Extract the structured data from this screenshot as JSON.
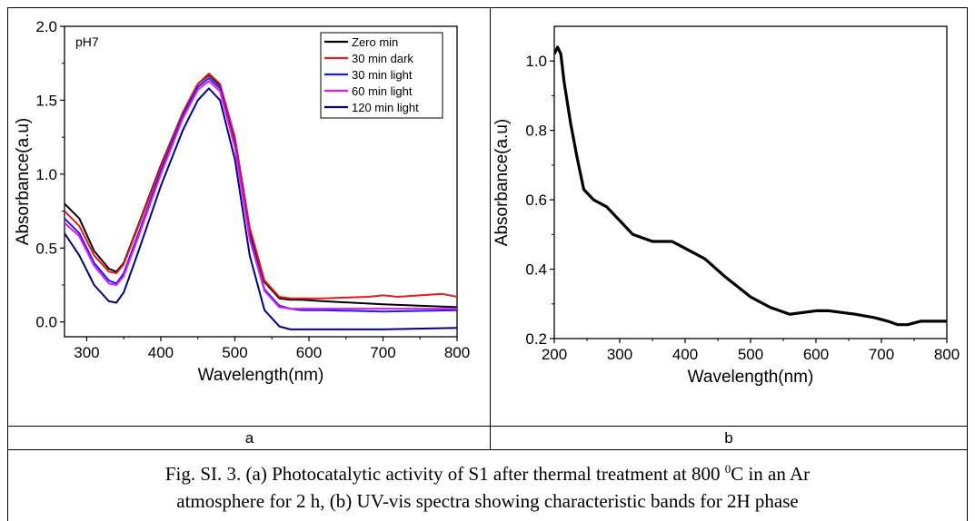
{
  "chart_data": [
    {
      "type": "line",
      "panel": "a",
      "annotation": "pH7",
      "xlabel": "Wavelength(nm)",
      "ylabel": "Absorbance(a.u)",
      "xlim": [
        270,
        800
      ],
      "ylim": [
        -0.1,
        2.0
      ],
      "xticks": [
        300,
        400,
        500,
        600,
        700,
        800
      ],
      "yticks": [
        0.0,
        0.5,
        1.0,
        1.5,
        2.0
      ],
      "ytick_labels": [
        "0.0",
        "0.5",
        "1.0",
        "1.5",
        "2.0"
      ],
      "legend_position": "top-right",
      "series": [
        {
          "name": "Zero min",
          "color": "#000000",
          "x": [
            270,
            290,
            310,
            330,
            340,
            350,
            370,
            400,
            430,
            450,
            465,
            480,
            500,
            520,
            540,
            560,
            575,
            590,
            620,
            700,
            800
          ],
          "y": [
            0.8,
            0.7,
            0.48,
            0.36,
            0.34,
            0.4,
            0.66,
            1.06,
            1.42,
            1.61,
            1.67,
            1.6,
            1.23,
            0.62,
            0.27,
            0.16,
            0.15,
            0.15,
            0.14,
            0.12,
            0.1
          ]
        },
        {
          "name": "30 min dark",
          "color": "#e41a1c",
          "x": [
            270,
            290,
            310,
            330,
            340,
            350,
            370,
            400,
            430,
            450,
            465,
            480,
            500,
            520,
            540,
            560,
            575,
            590,
            620,
            680,
            700,
            720,
            780,
            800
          ],
          "y": [
            0.75,
            0.65,
            0.45,
            0.34,
            0.33,
            0.39,
            0.65,
            1.05,
            1.42,
            1.61,
            1.68,
            1.61,
            1.25,
            0.64,
            0.28,
            0.17,
            0.16,
            0.16,
            0.16,
            0.17,
            0.18,
            0.17,
            0.19,
            0.17
          ]
        },
        {
          "name": "30 min light",
          "color": "#1a1aff",
          "x": [
            270,
            290,
            310,
            330,
            340,
            350,
            370,
            400,
            430,
            450,
            465,
            480,
            500,
            520,
            540,
            560,
            575,
            590,
            620,
            700,
            800
          ],
          "y": [
            0.7,
            0.6,
            0.4,
            0.28,
            0.26,
            0.33,
            0.6,
            1.02,
            1.4,
            1.59,
            1.65,
            1.58,
            1.2,
            0.58,
            0.22,
            0.11,
            0.09,
            0.08,
            0.08,
            0.07,
            0.08
          ]
        },
        {
          "name": "60 min light",
          "color": "#e61ae6",
          "x": [
            270,
            290,
            310,
            330,
            340,
            350,
            370,
            400,
            430,
            450,
            465,
            480,
            500,
            520,
            540,
            560,
            575,
            590,
            620,
            700,
            800
          ],
          "y": [
            0.67,
            0.58,
            0.38,
            0.26,
            0.25,
            0.31,
            0.58,
            1.0,
            1.38,
            1.57,
            1.63,
            1.56,
            1.18,
            0.56,
            0.21,
            0.1,
            0.09,
            0.09,
            0.09,
            0.09,
            0.09
          ]
        },
        {
          "name": "120 min light",
          "color": "#000080",
          "x": [
            270,
            290,
            310,
            330,
            340,
            350,
            370,
            400,
            430,
            450,
            465,
            480,
            500,
            520,
            540,
            560,
            575,
            590,
            620,
            700,
            800
          ],
          "y": [
            0.6,
            0.45,
            0.25,
            0.14,
            0.13,
            0.2,
            0.48,
            0.92,
            1.3,
            1.5,
            1.58,
            1.5,
            1.1,
            0.45,
            0.08,
            -0.03,
            -0.05,
            -0.05,
            -0.05,
            -0.05,
            -0.04
          ]
        }
      ]
    },
    {
      "type": "line",
      "panel": "b",
      "xlabel": "Wavelength(nm)",
      "ylabel": "Absorbance(a.u)",
      "xlim": [
        200,
        800
      ],
      "ylim": [
        0.2,
        1.1
      ],
      "xticks": [
        200,
        300,
        400,
        500,
        600,
        700,
        800
      ],
      "yticks": [
        0.2,
        0.4,
        0.6,
        0.8,
        1.0
      ],
      "ytick_labels": [
        "0.2",
        "0.4",
        "0.6",
        "0.8",
        "1.0"
      ],
      "series": [
        {
          "color": "#000000",
          "x": [
            200,
            205,
            210,
            215,
            225,
            235,
            245,
            260,
            280,
            300,
            320,
            350,
            380,
            400,
            430,
            460,
            500,
            530,
            560,
            600,
            620,
            660,
            690,
            710,
            725,
            740,
            760,
            780,
            800
          ],
          "y": [
            1.02,
            1.04,
            1.02,
            0.94,
            0.82,
            0.72,
            0.63,
            0.6,
            0.58,
            0.54,
            0.5,
            0.48,
            0.48,
            0.46,
            0.43,
            0.38,
            0.32,
            0.29,
            0.27,
            0.28,
            0.28,
            0.27,
            0.26,
            0.25,
            0.24,
            0.24,
            0.25,
            0.25,
            0.25
          ]
        }
      ]
    }
  ],
  "panel_labels": {
    "a": "a",
    "b": "b"
  },
  "caption": {
    "line1_pre": "Fig. SI. 3. (a) Photocatalytic activity of S1 after thermal treatment at 800 ",
    "line1_sup": "0",
    "line1_post": "C in an Ar",
    "line2": "atmosphere for 2 h, (b) UV-vis spectra showing characteristic bands for 2H phase"
  }
}
